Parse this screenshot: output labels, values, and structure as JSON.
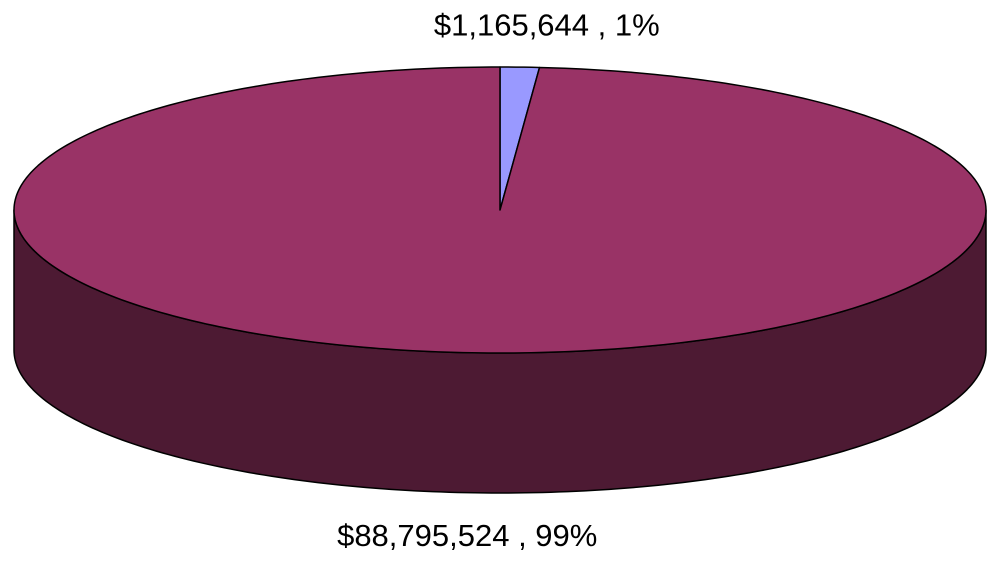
{
  "chart_data": {
    "type": "pie",
    "values": [
      1165644,
      88795524
    ],
    "value_labels": [
      "$1,165,644 , 1%",
      "$88,795,524 , 99%"
    ],
    "colors": [
      "#9999ff",
      "#993366"
    ]
  }
}
